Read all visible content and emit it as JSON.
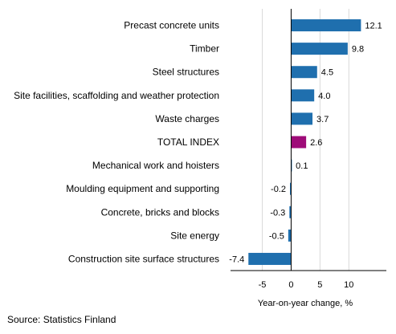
{
  "chart_data": {
    "type": "bar",
    "orientation": "horizontal",
    "categories": [
      "Precast concrete units",
      "Timber",
      "Steel structures",
      "Site facilities, scaffolding and weather protection",
      "Waste charges",
      "TOTAL INDEX",
      "Mechanical work and hoisters",
      "Moulding equipment and supporting",
      "Concrete, bricks and blocks",
      "Site energy",
      "Construction site surface structures"
    ],
    "values": [
      12.1,
      9.8,
      4.5,
      4.0,
      3.7,
      2.6,
      0.1,
      -0.2,
      -0.3,
      -0.5,
      -7.4
    ],
    "value_labels": [
      "12.1",
      "9.8",
      "4.5",
      "4.0",
      "3.7",
      "2.6",
      "0.1",
      "-0.2",
      "-0.3",
      "-0.5",
      "-7.4"
    ],
    "highlight_category": "TOTAL INDEX",
    "xlabel": "Year-on-year change, %",
    "xticks": [
      -5,
      0,
      5,
      10
    ],
    "xtick_labels": [
      "-5",
      "0",
      "5",
      "10"
    ],
    "xlim": [
      -10.5,
      16.5
    ],
    "grid": true,
    "colors": {
      "bar": "#1f6fae",
      "highlight": "#9e0b78",
      "grid": "#d9d9d9",
      "axis": "#000000"
    }
  },
  "source": "Source: Statistics Finland"
}
